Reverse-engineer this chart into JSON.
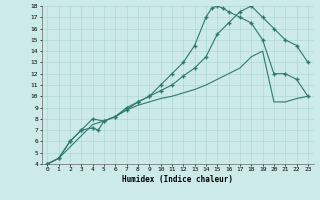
{
  "xlabel": "Humidex (Indice chaleur)",
  "bg_color": "#cceae7",
  "grid_color": "#aad4d0",
  "line_color": "#2d7a6e",
  "xlim": [
    -0.5,
    23.5
  ],
  "ylim": [
    4,
    18
  ],
  "xtick_labels": [
    "0",
    "1",
    "2",
    "3",
    "4",
    "5",
    "6",
    "7",
    "8",
    "9",
    "10",
    "11",
    "12",
    "13",
    "14",
    "15",
    "16",
    "17",
    "18",
    "19",
    "20",
    "21",
    "22",
    "23"
  ],
  "ytick_labels": [
    "4",
    "5",
    "6",
    "7",
    "8",
    "9",
    "10",
    "11",
    "12",
    "13",
    "14",
    "15",
    "16",
    "17",
    "18"
  ],
  "curve1_x": [
    0,
    1,
    2,
    3,
    4,
    4.5,
    5,
    6,
    7,
    8,
    9,
    10,
    11,
    12,
    13,
    14,
    14.5,
    15,
    15.5,
    16,
    17,
    18,
    19,
    20,
    21,
    22,
    23
  ],
  "curve1_y": [
    4,
    4.5,
    6,
    7,
    7.2,
    7.0,
    7.8,
    8.2,
    9.0,
    9.5,
    10.0,
    11.0,
    12.0,
    13.0,
    14.5,
    17.0,
    17.8,
    18.0,
    17.8,
    17.5,
    17.0,
    16.5,
    15.0,
    12.0,
    12.0,
    11.5,
    10.0
  ],
  "curve2_x": [
    0,
    1,
    2,
    3,
    4,
    5,
    6,
    7,
    8,
    9,
    10,
    11,
    12,
    13,
    14,
    15,
    16,
    17,
    18,
    19,
    20,
    21,
    22,
    23
  ],
  "curve2_y": [
    4,
    4.5,
    6,
    7,
    8.0,
    7.8,
    8.2,
    8.8,
    9.5,
    10.0,
    10.5,
    11.0,
    11.8,
    12.5,
    13.5,
    15.5,
    16.5,
    17.5,
    18.0,
    17.0,
    16.0,
    15.0,
    14.5,
    13.0
  ],
  "curve3_x": [
    0,
    1,
    2,
    3,
    4,
    5,
    6,
    7,
    8,
    9,
    10,
    11,
    12,
    13,
    14,
    15,
    16,
    17,
    18,
    19,
    20,
    21,
    22,
    23
  ],
  "curve3_y": [
    4,
    4.5,
    5.5,
    6.5,
    7.5,
    7.8,
    8.2,
    8.8,
    9.2,
    9.5,
    9.8,
    10.0,
    10.3,
    10.6,
    11.0,
    11.5,
    12.0,
    12.5,
    13.5,
    14.0,
    9.5,
    9.5,
    9.8,
    10.0
  ],
  "linewidth": 0.8,
  "markersize": 3,
  "marker": "+"
}
